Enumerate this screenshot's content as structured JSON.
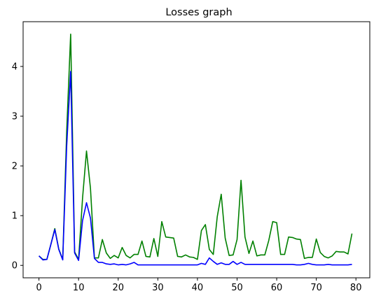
{
  "chart_data": {
    "type": "line",
    "title": "Losses graph",
    "xlabel": "",
    "ylabel": "",
    "xlim": [
      -4,
      83.5
    ],
    "ylim": [
      -0.25,
      4.9
    ],
    "xticks": [
      0,
      10,
      20,
      30,
      40,
      50,
      60,
      70,
      80
    ],
    "yticks": [
      0,
      1,
      2,
      3,
      4
    ],
    "grid": false,
    "legend": "none",
    "series": [
      {
        "color": "#008000",
        "x": [
          0,
          1,
          2,
          3,
          4,
          5,
          6,
          7,
          8,
          9,
          10,
          11,
          12,
          13,
          14,
          15,
          16,
          17,
          18,
          19,
          20,
          21,
          22,
          23,
          24,
          25,
          26,
          27,
          28,
          29,
          30,
          31,
          32,
          33,
          34,
          35,
          36,
          37,
          38,
          39,
          40,
          41,
          42,
          43,
          44,
          45,
          46,
          47,
          48,
          49,
          50,
          51,
          52,
          53,
          54,
          55,
          56,
          57,
          58,
          59,
          60,
          61,
          62,
          63,
          64,
          65,
          66,
          67,
          68,
          69,
          70,
          71,
          72,
          73,
          74,
          75,
          76,
          77,
          78,
          79
        ],
        "values": [
          0.19,
          0.12,
          0.12,
          0.42,
          0.74,
          0.33,
          0.12,
          2.7,
          4.65,
          0.27,
          0.12,
          1.35,
          2.3,
          1.55,
          0.15,
          0.15,
          0.52,
          0.25,
          0.14,
          0.2,
          0.15,
          0.36,
          0.2,
          0.15,
          0.22,
          0.22,
          0.49,
          0.18,
          0.17,
          0.54,
          0.18,
          0.88,
          0.57,
          0.56,
          0.55,
          0.18,
          0.17,
          0.21,
          0.17,
          0.16,
          0.12,
          0.7,
          0.82,
          0.32,
          0.22,
          0.98,
          1.43,
          0.55,
          0.2,
          0.21,
          0.52,
          1.71,
          0.57,
          0.24,
          0.49,
          0.19,
          0.21,
          0.21,
          0.5,
          0.88,
          0.86,
          0.22,
          0.22,
          0.57,
          0.56,
          0.53,
          0.52,
          0.14,
          0.16,
          0.16,
          0.53,
          0.26,
          0.18,
          0.15,
          0.19,
          0.28,
          0.27,
          0.27,
          0.23,
          0.64
        ]
      },
      {
        "color": "#0000ff",
        "x": [
          0,
          1,
          2,
          3,
          4,
          5,
          6,
          7,
          8,
          9,
          10,
          11,
          12,
          13,
          14,
          15,
          16,
          17,
          18,
          19,
          20,
          21,
          22,
          23,
          24,
          25,
          26,
          27,
          28,
          29,
          30,
          31,
          32,
          33,
          34,
          35,
          36,
          37,
          38,
          39,
          40,
          41,
          42,
          43,
          44,
          45,
          46,
          47,
          48,
          49,
          50,
          51,
          52,
          53,
          54,
          55,
          56,
          57,
          58,
          59,
          60,
          61,
          62,
          63,
          64,
          65,
          66,
          67,
          68,
          69,
          70,
          71,
          72,
          73,
          74,
          75,
          76,
          77,
          78,
          79
        ],
        "values": [
          0.19,
          0.11,
          0.12,
          0.42,
          0.72,
          0.32,
          0.11,
          2.4,
          3.9,
          0.25,
          0.1,
          0.9,
          1.26,
          0.95,
          0.14,
          0.06,
          0.06,
          0.03,
          0.02,
          0.03,
          0.01,
          0.02,
          0.01,
          0.03,
          0.06,
          0.01,
          0.01,
          0.01,
          0.01,
          0.01,
          0.01,
          0.01,
          0.01,
          0.01,
          0.01,
          0.01,
          0.01,
          0.01,
          0.01,
          0.01,
          0.01,
          0.04,
          0.02,
          0.15,
          0.08,
          0.02,
          0.05,
          0.02,
          0.02,
          0.08,
          0.02,
          0.06,
          0.02,
          0.02,
          0.02,
          0.02,
          0.02,
          0.02,
          0.02,
          0.02,
          0.02,
          0.02,
          0.02,
          0.02,
          0.02,
          0.01,
          0.01,
          0.02,
          0.04,
          0.02,
          0.01,
          0.01,
          0.01,
          0.02,
          0.01,
          0.01,
          0.01,
          0.01,
          0.01,
          0.02
        ]
      }
    ]
  }
}
